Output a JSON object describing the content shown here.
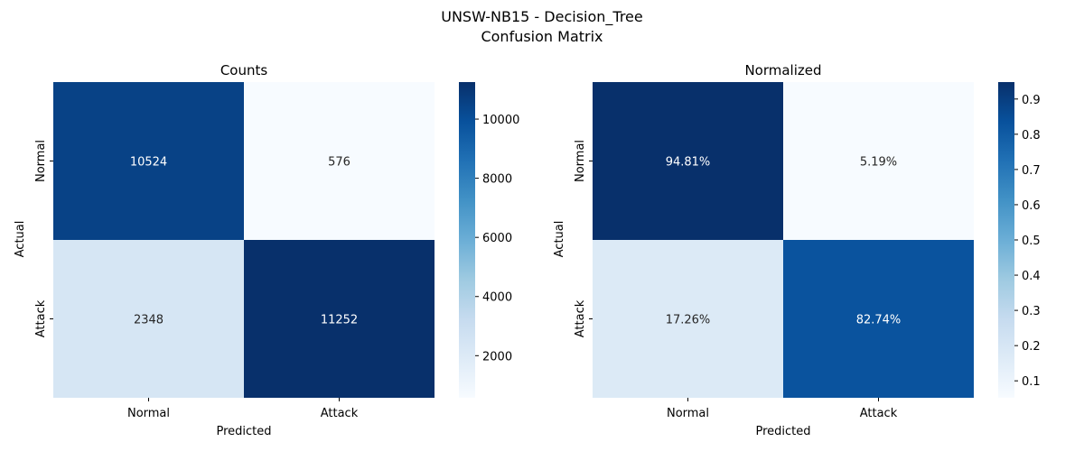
{
  "figure": {
    "title_line1": "UNSW-NB15 - Decision_Tree",
    "title_line2": "Confusion Matrix"
  },
  "chart_data": [
    {
      "type": "heatmap",
      "title": "Counts",
      "xlabel": "Predicted",
      "ylabel": "Actual",
      "x_categories": [
        "Normal",
        "Attack"
      ],
      "y_categories": [
        "Normal",
        "Attack"
      ],
      "values": [
        [
          10524,
          576
        ],
        [
          2348,
          11252
        ]
      ],
      "cell_labels": [
        [
          "10524",
          "576"
        ],
        [
          "2348",
          "11252"
        ]
      ],
      "colormap": "Blues",
      "color_range": [
        576,
        11252
      ],
      "colorbar_ticks": [
        2000,
        4000,
        6000,
        8000,
        10000
      ],
      "colorbar_tick_labels": [
        "2000",
        "4000",
        "6000",
        "8000",
        "10000"
      ]
    },
    {
      "type": "heatmap",
      "title": "Normalized",
      "xlabel": "Predicted",
      "ylabel": "Actual",
      "x_categories": [
        "Normal",
        "Attack"
      ],
      "y_categories": [
        "Normal",
        "Attack"
      ],
      "values": [
        [
          0.9481,
          0.0519
        ],
        [
          0.1726,
          0.8274
        ]
      ],
      "cell_labels": [
        [
          "94.81%",
          "5.19%"
        ],
        [
          "17.26%",
          "82.74%"
        ]
      ],
      "colormap": "Blues",
      "color_range": [
        0.0519,
        0.9481
      ],
      "colorbar_ticks": [
        0.1,
        0.2,
        0.3,
        0.4,
        0.5,
        0.6,
        0.7,
        0.8,
        0.9
      ],
      "colorbar_tick_labels": [
        "0.1",
        "0.2",
        "0.3",
        "0.4",
        "0.5",
        "0.6",
        "0.7",
        "0.8",
        "0.9"
      ]
    }
  ]
}
